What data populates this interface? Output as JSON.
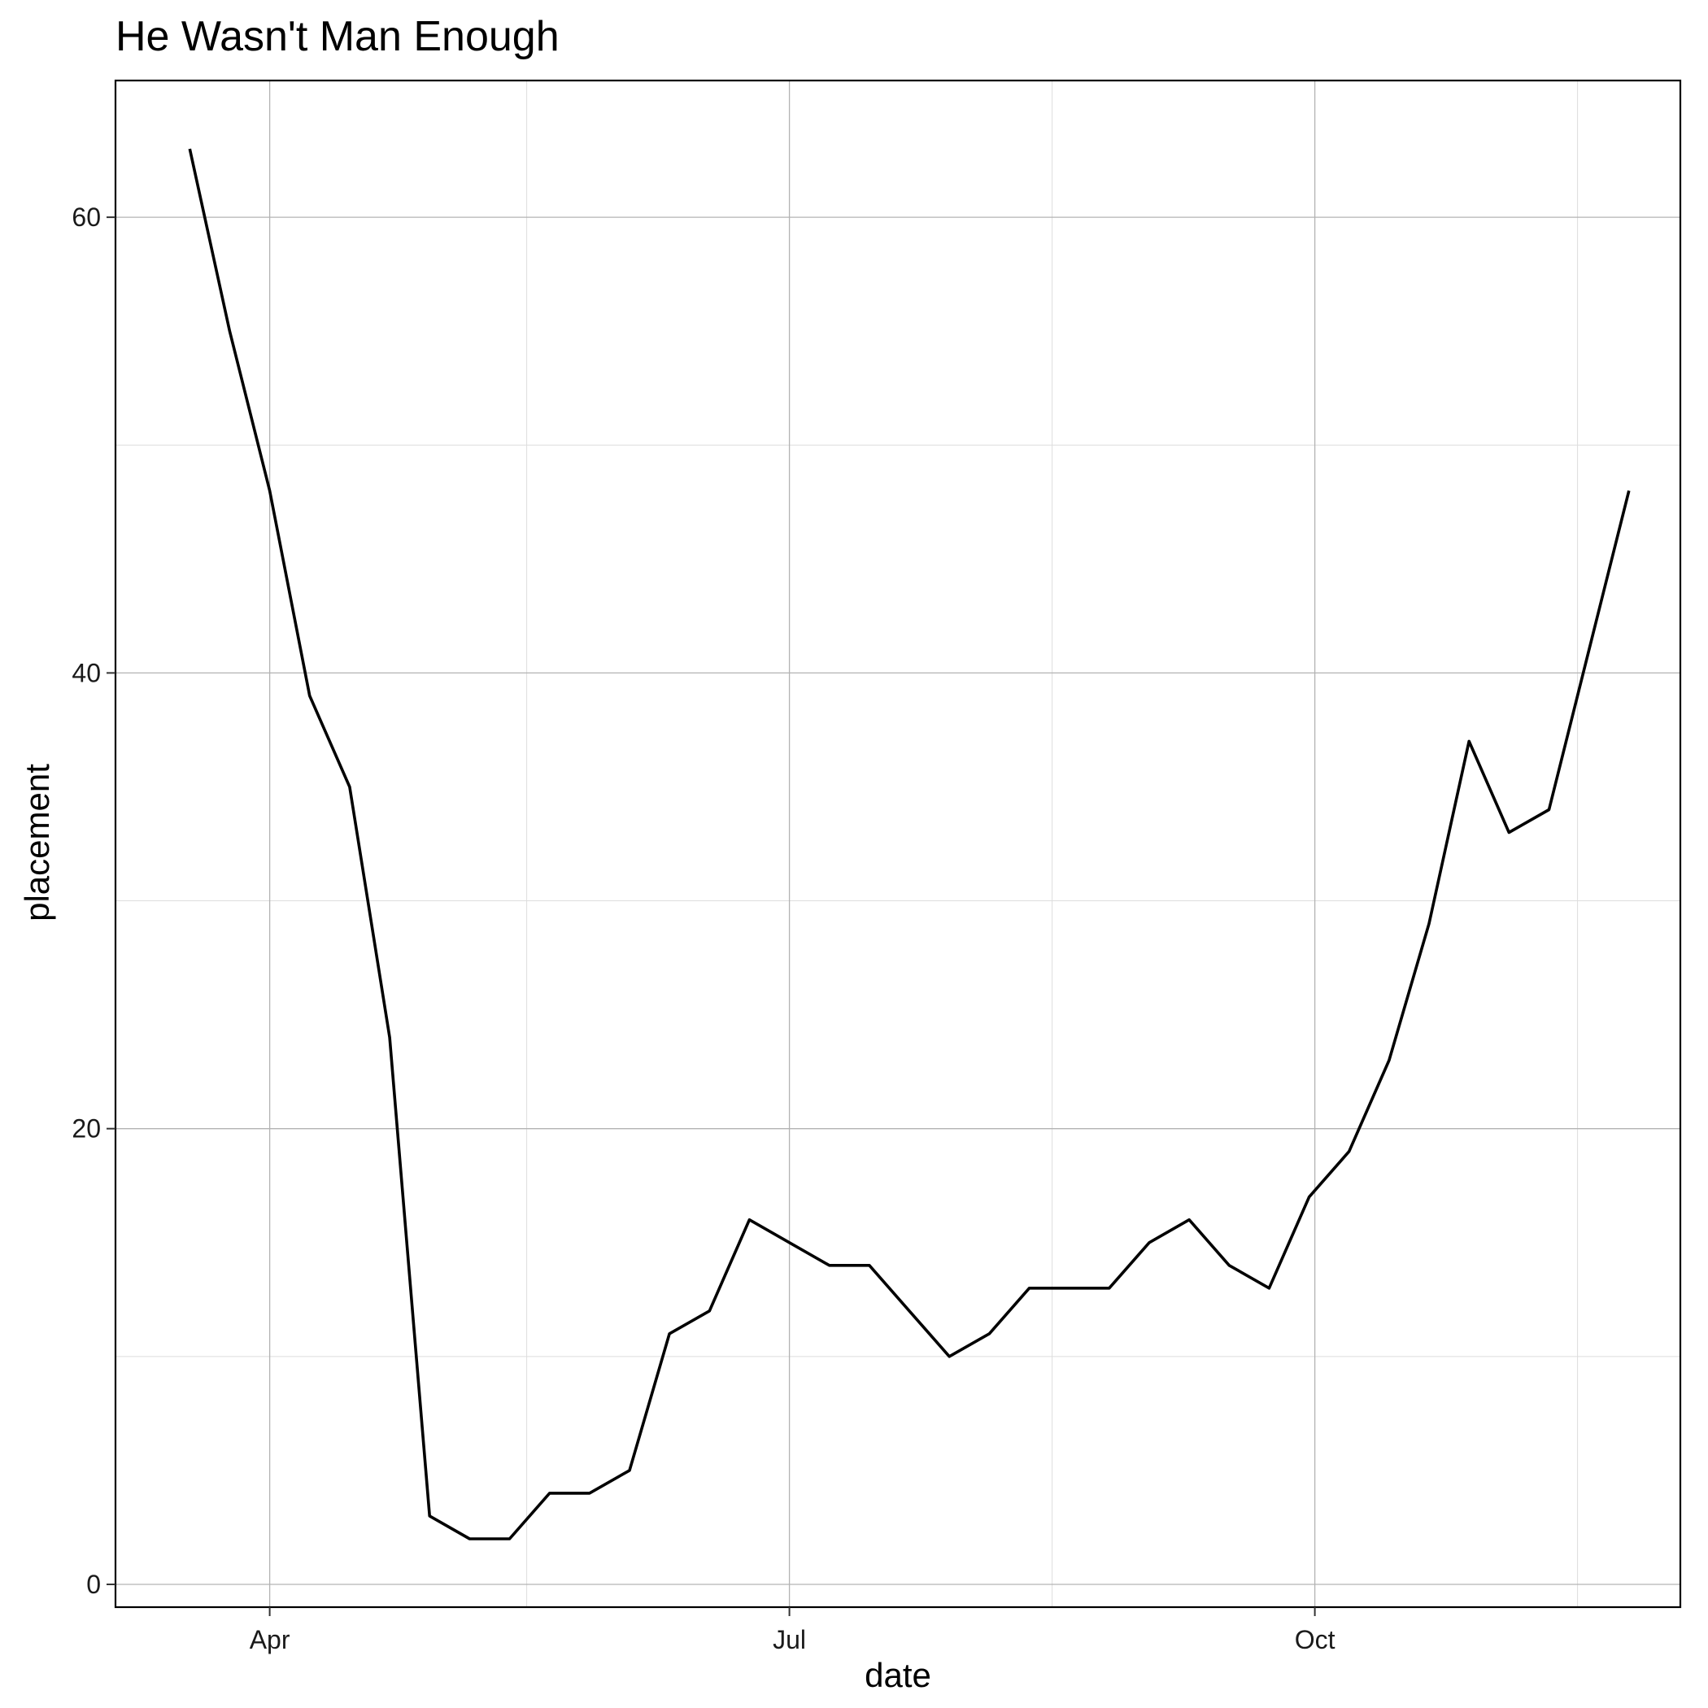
{
  "chart_data": {
    "type": "line",
    "title": "He Wasn't Man Enough",
    "xlabel": "date",
    "ylabel": "placement",
    "xlim": [
      "2000-03-05",
      "2000-12-04"
    ],
    "ylim": [
      -1,
      66
    ],
    "x_ticks": [
      {
        "date": "2000-04-01",
        "label": "Apr"
      },
      {
        "date": "2000-07-01",
        "label": "Jul"
      },
      {
        "date": "2000-10-01",
        "label": "Oct"
      }
    ],
    "x_minor_ticks": [
      "2000-05-16",
      "2000-08-16",
      "2000-11-16"
    ],
    "y_ticks": [
      0,
      20,
      40,
      60
    ],
    "y_minor_ticks": [
      10,
      30,
      50
    ],
    "grid": true,
    "legend": "none",
    "line_color": "#000000",
    "series": [
      {
        "x": [
          "2000-03-18",
          "2000-03-25",
          "2000-04-01",
          "2000-04-08",
          "2000-04-15",
          "2000-04-22",
          "2000-04-29",
          "2000-05-06",
          "2000-05-13",
          "2000-05-20",
          "2000-05-27",
          "2000-06-03",
          "2000-06-10",
          "2000-06-17",
          "2000-06-24",
          "2000-07-01",
          "2000-07-08",
          "2000-07-15",
          "2000-07-22",
          "2000-07-29",
          "2000-08-05",
          "2000-08-12",
          "2000-08-19",
          "2000-08-26",
          "2000-09-02",
          "2000-09-09",
          "2000-09-16",
          "2000-09-23",
          "2000-09-30",
          "2000-10-07",
          "2000-10-14",
          "2000-10-21",
          "2000-10-28",
          "2000-11-04",
          "2000-11-11",
          "2000-11-18",
          "2000-11-25"
        ],
        "y": [
          63,
          55,
          48,
          39,
          35,
          24,
          3,
          2,
          2,
          4,
          4,
          5,
          11,
          12,
          16,
          15,
          14,
          14,
          12,
          10,
          11,
          13,
          13,
          13,
          15,
          16,
          14,
          13,
          17,
          19,
          23,
          29,
          37,
          33,
          34,
          41,
          48
        ]
      }
    ]
  }
}
